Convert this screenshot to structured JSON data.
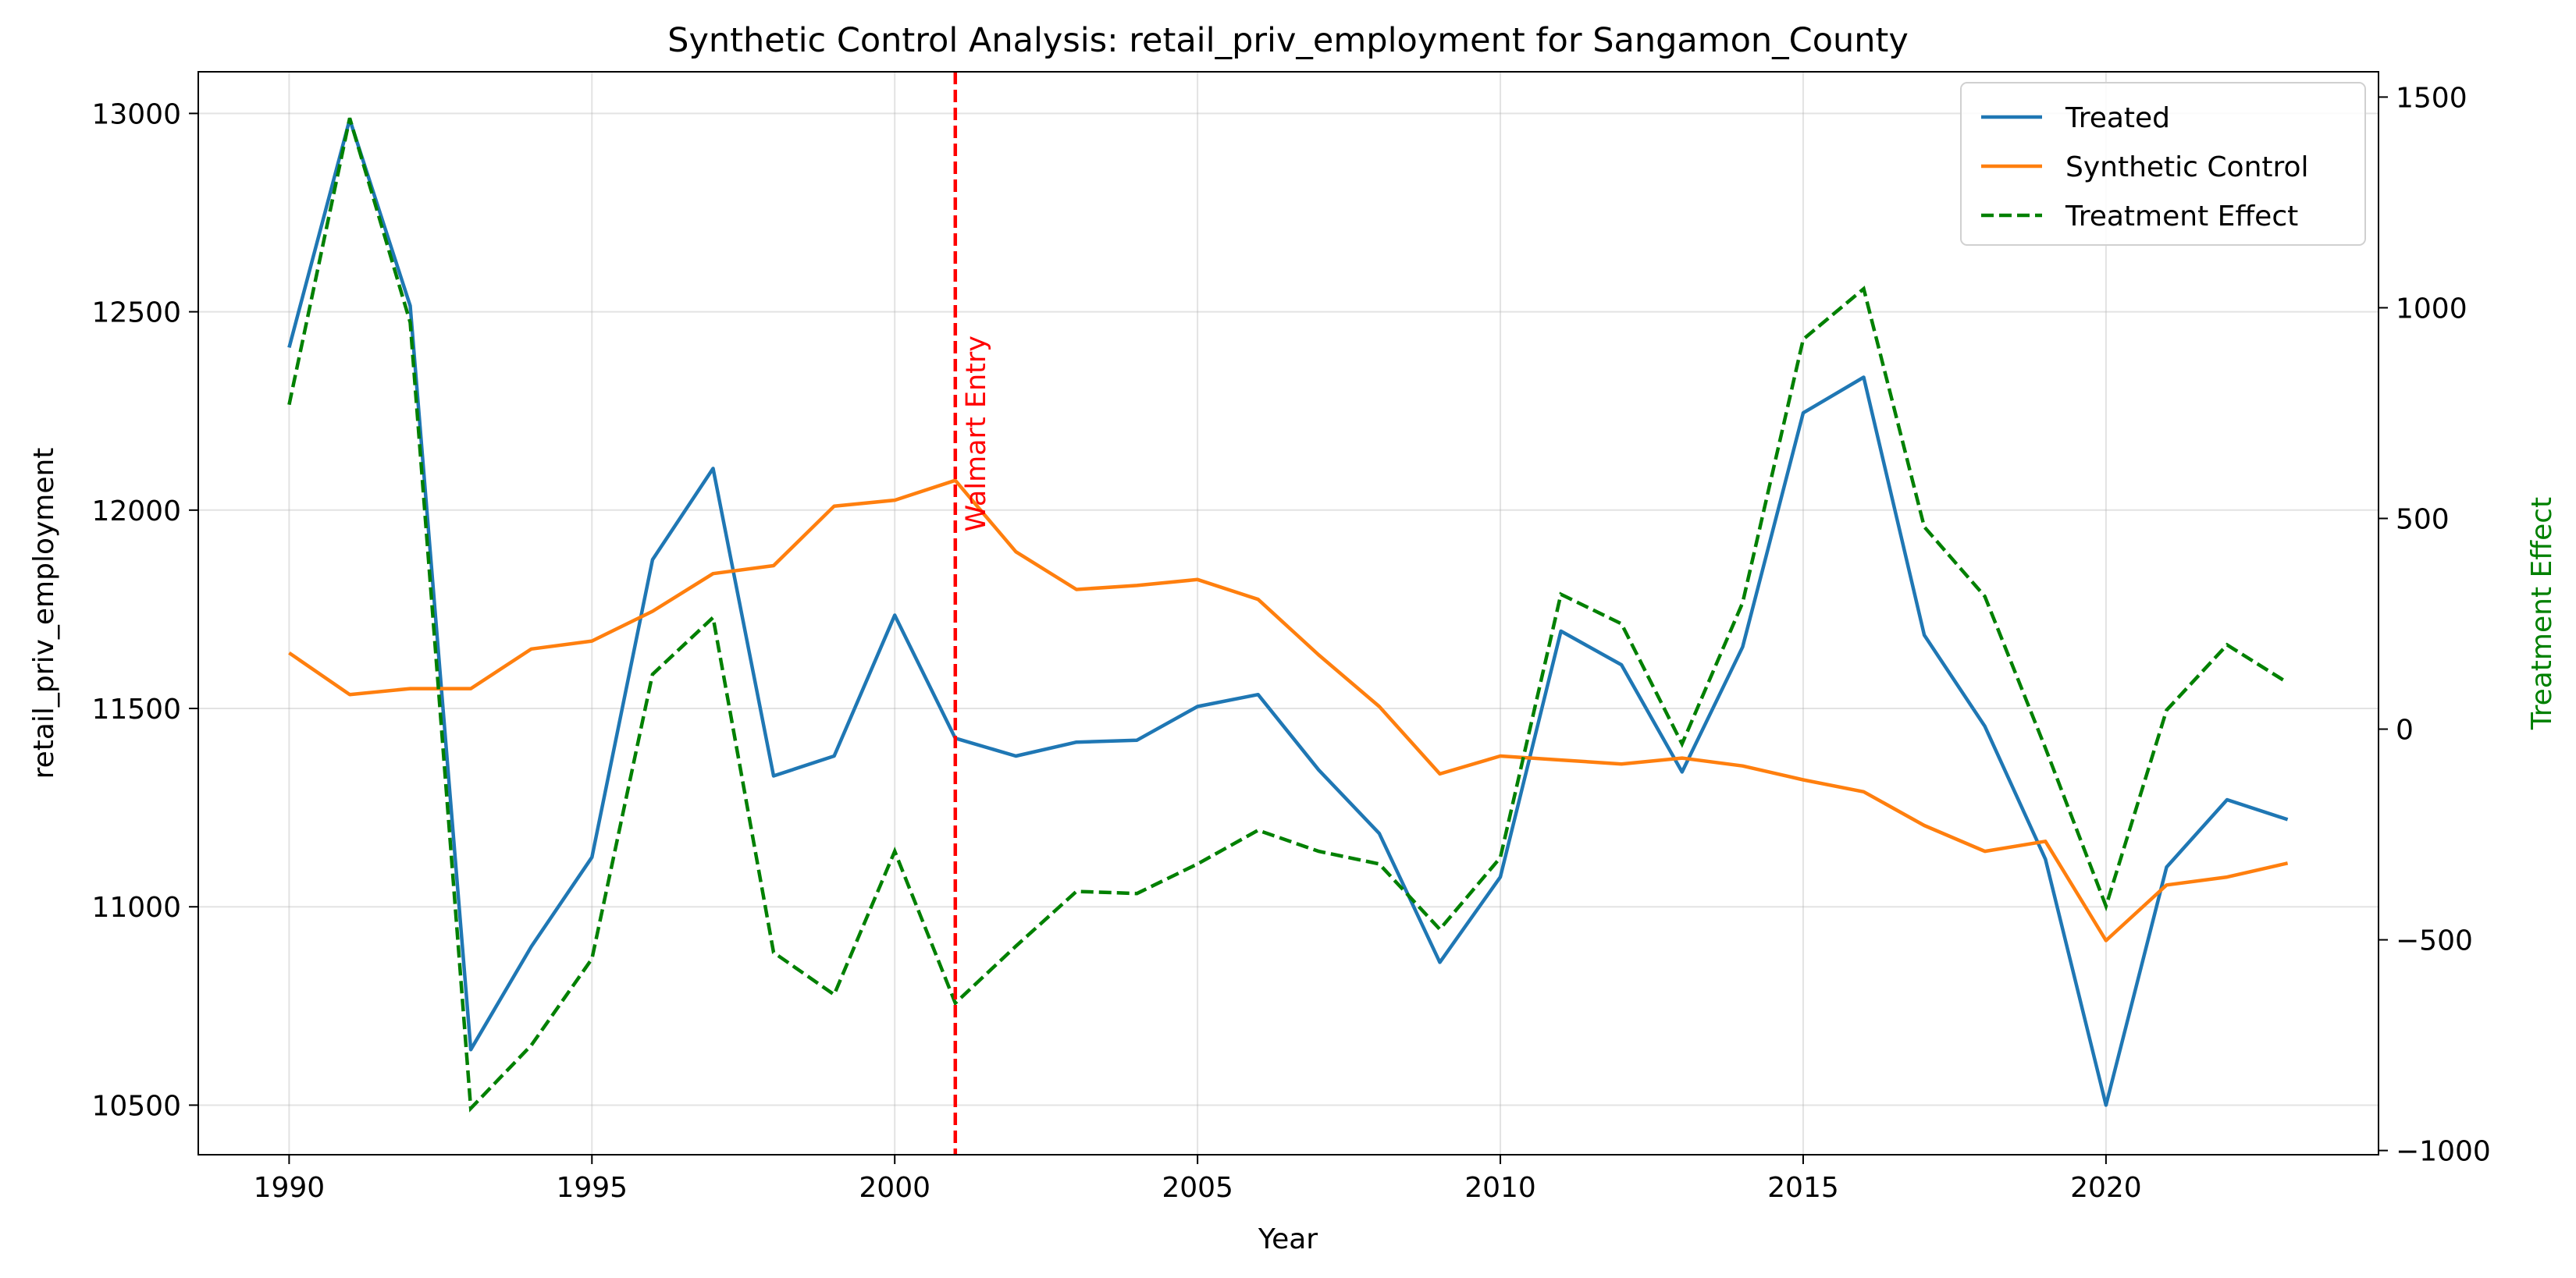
{
  "chart_data": {
    "type": "line",
    "title": "Synthetic Control Analysis: retail_priv_employment for Sangamon_County",
    "xlabel": "Year",
    "ylabel": "retail_priv_employment",
    "y2label": "Treatment Effect",
    "xlim": [
      1988.5,
      2024.5
    ],
    "ylim": [
      10375,
      13105
    ],
    "y2lim": [
      -1010,
      1560
    ],
    "xticks": [
      1990,
      1995,
      2000,
      2005,
      2010,
      2015,
      2020
    ],
    "yticks": [
      10500,
      11000,
      11500,
      12000,
      12500,
      13000
    ],
    "y2ticks": [
      -1000,
      -500,
      0,
      500,
      1000,
      1500
    ],
    "grid": true,
    "legend_position": "top-right",
    "x": [
      1990,
      1991,
      1992,
      1993,
      1994,
      1995,
      1996,
      1997,
      1998,
      1999,
      2000,
      2001,
      2002,
      2003,
      2004,
      2005,
      2006,
      2007,
      2008,
      2009,
      2010,
      2011,
      2012,
      2013,
      2014,
      2015,
      2016,
      2017,
      2018,
      2019,
      2020,
      2021,
      2022,
      2023
    ],
    "series": [
      {
        "name": "Treated",
        "axis": "left",
        "style": "solid",
        "color": "#1f77b4",
        "values": [
          12410,
          12985,
          12515,
          10640,
          10900,
          11125,
          11875,
          12105,
          11330,
          11380,
          11735,
          11425,
          11380,
          11415,
          11420,
          11505,
          11535,
          11345,
          11185,
          10860,
          11075,
          11695,
          11610,
          11340,
          11655,
          12245,
          12335,
          11685,
          11455,
          11120,
          10500,
          11100,
          11270,
          11220
        ]
      },
      {
        "name": "Synthetic Control",
        "axis": "left",
        "style": "solid",
        "color": "#ff7f0e",
        "values": [
          11640,
          11535,
          11550,
          11550,
          11650,
          11670,
          11745,
          11840,
          11860,
          12010,
          12025,
          12075,
          11895,
          11800,
          11810,
          11825,
          11775,
          11635,
          11505,
          11335,
          11380,
          11370,
          11360,
          11375,
          11355,
          11320,
          11290,
          11205,
          11140,
          11165,
          10915,
          11055,
          11075,
          11110
        ]
      },
      {
        "name": "Treatment Effect",
        "axis": "right",
        "style": "dashed",
        "color": "#008000",
        "values": [
          770,
          1450,
          965,
          -900,
          -750,
          -545,
          130,
          265,
          -530,
          -630,
          -290,
          -650,
          -515,
          -385,
          -390,
          -320,
          -240,
          -290,
          -320,
          -475,
          -305,
          320,
          250,
          -35,
          300,
          925,
          1045,
          480,
          315,
          -45,
          -420,
          45,
          200,
          110
        ]
      }
    ],
    "annotations": [
      {
        "type": "vline",
        "x": 2001,
        "color": "#ff0000",
        "style": "dashed",
        "label": "Walmart Entry"
      }
    ]
  }
}
